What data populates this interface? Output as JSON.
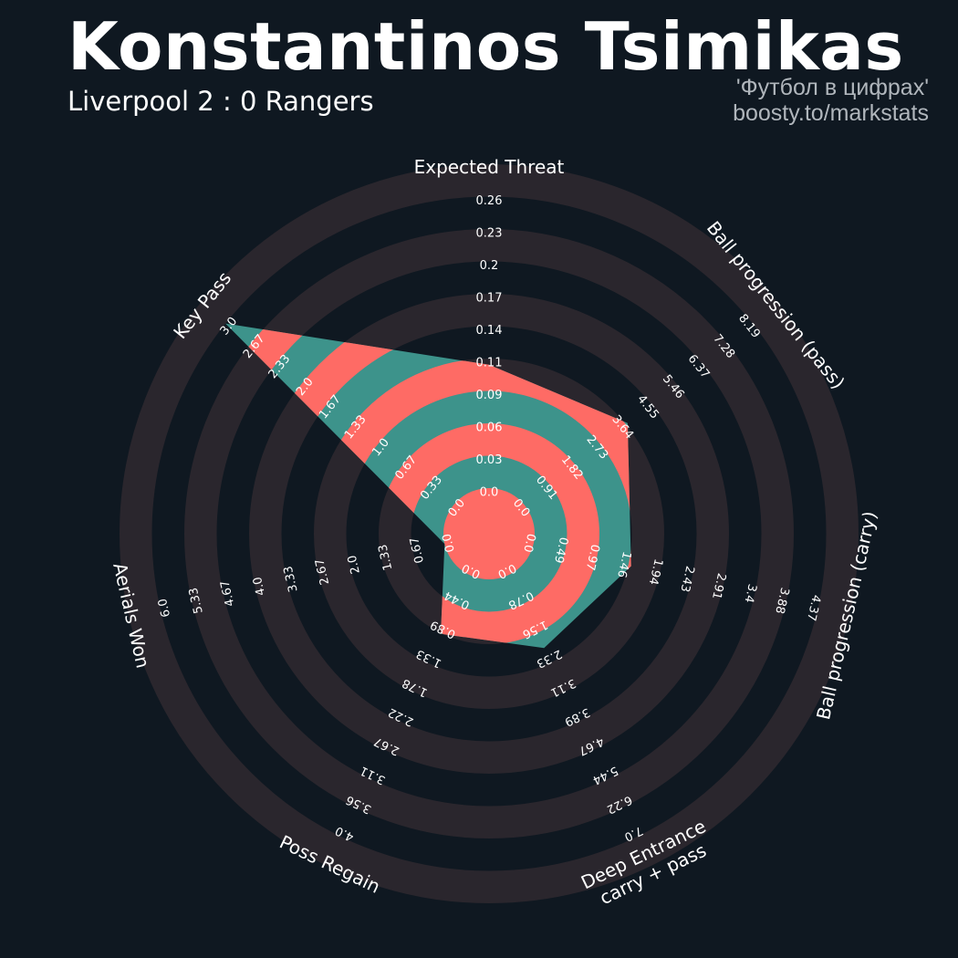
{
  "header": {
    "player": "Konstantinos Tsimikas",
    "match": "Liverpool 2 : 0 Rangers",
    "credit_line1": "'Футбол в цифрах'",
    "credit_line2": "boosty.to/markstats"
  },
  "colors": {
    "background": "#0f1821",
    "ring": "#2a262d",
    "fill_teal": "#3d938b",
    "fill_red": "#fe6b65",
    "text": "#ffffff",
    "credit": "#b0b6bc"
  },
  "chart_data": {
    "type": "radar",
    "parameters": [
      {
        "label": [
          "Expected Threat"
        ],
        "ticks": [
          "0.0",
          "0.03",
          "0.06",
          "0.09",
          "0.11",
          "0.14",
          "0.17",
          "0.2",
          "0.23",
          "0.26"
        ],
        "value": 0.11,
        "min": 0.0,
        "max": 0.26
      },
      {
        "label": [
          "Ball progression (pass)"
        ],
        "ticks": [
          "0.0",
          "0.91",
          "1.82",
          "2.73",
          "3.64",
          "4.55",
          "5.46",
          "6.37",
          "7.28",
          "8.19"
        ],
        "value": 3.7,
        "min": 0.0,
        "max": 8.19
      },
      {
        "label": [
          "Ball progression (carry)"
        ],
        "ticks": [
          "0.0",
          "0.49",
          "0.97",
          "1.46",
          "1.94",
          "2.43",
          "2.91",
          "3.4",
          "3.88",
          "4.37"
        ],
        "value": 1.5,
        "min": 0.0,
        "max": 4.37
      },
      {
        "label": [
          "Deep Entrance",
          "carry + pass"
        ],
        "ticks": [
          "0.0",
          "0.78",
          "1.56",
          "2.33",
          "3.11",
          "3.89",
          "4.67",
          "5.44",
          "6.22",
          "7.0"
        ],
        "value": 1.95,
        "min": 0.0,
        "max": 7.0
      },
      {
        "label": [
          "Poss Regain"
        ],
        "ticks": [
          "0.0",
          "0.44",
          "0.89",
          "1.33",
          "1.78",
          "2.22",
          "2.67",
          "3.11",
          "3.56",
          "4.0"
        ],
        "value": 0.9,
        "min": 0.0,
        "max": 4.0
      },
      {
        "label": [
          "Aerials Won"
        ],
        "ticks": [
          "0.0",
          "0.67",
          "1.33",
          "2.0",
          "2.67",
          "3.33",
          "4.0",
          "4.67",
          "5.33",
          "6.0"
        ],
        "value": 0.0,
        "min": 0.0,
        "max": 6.0
      },
      {
        "label": [
          "Key Pass"
        ],
        "ticks": [
          "0.0",
          "0.33",
          "0.67",
          "1.0",
          "1.33",
          "1.67",
          "2.0",
          "2.33",
          "2.67",
          "3.0"
        ],
        "value": 3.0,
        "min": 0.0,
        "max": 3.0
      }
    ]
  }
}
